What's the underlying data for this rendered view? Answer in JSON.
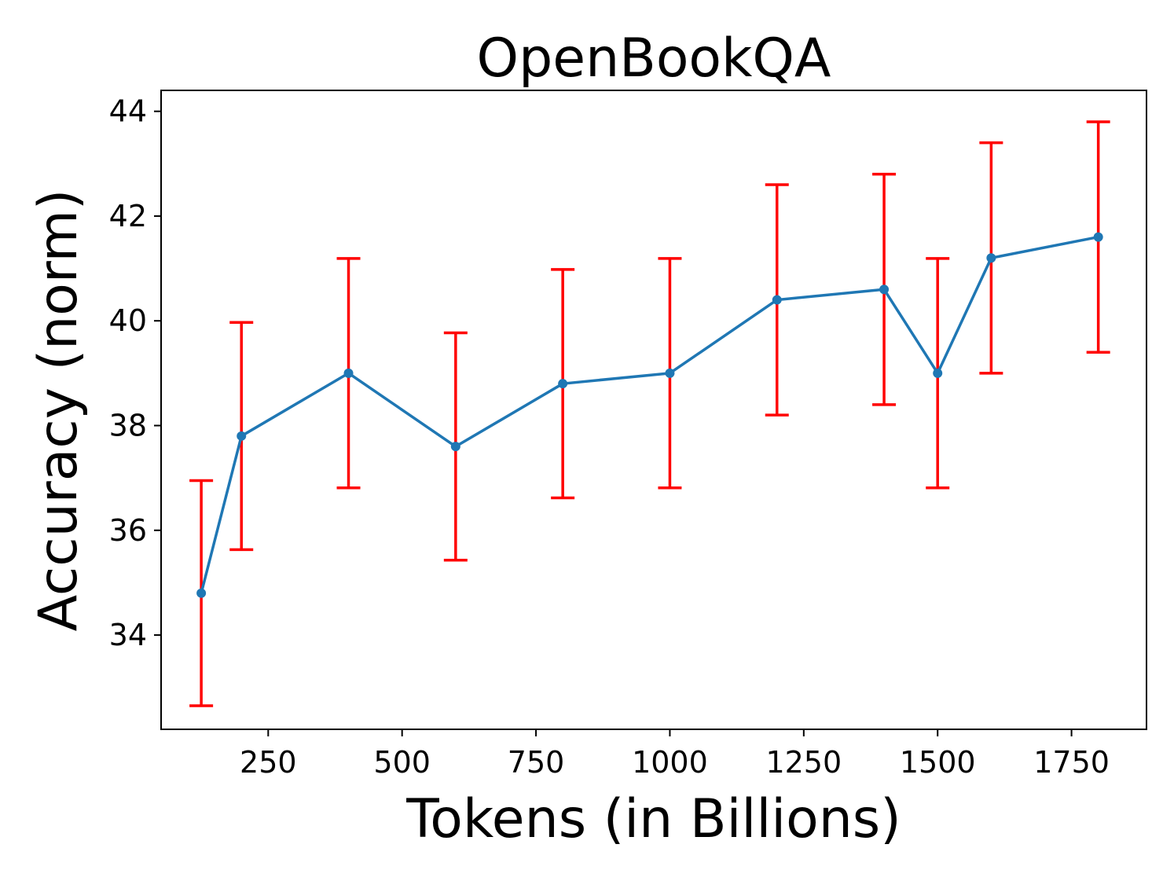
{
  "chart_data": {
    "type": "line",
    "title": "OpenBookQA",
    "xlabel": "Tokens (in Billions)",
    "ylabel": "Accuracy (norm)",
    "xlim": [
      50,
      1890
    ],
    "ylim": [
      32.2,
      44.4
    ],
    "xticks": [
      250,
      500,
      750,
      1000,
      1250,
      1500,
      1750
    ],
    "yticks": [
      34,
      36,
      38,
      40,
      42,
      44
    ],
    "grid": false,
    "series": [
      {
        "x": [
          125,
          200,
          400,
          600,
          800,
          1000,
          1200,
          1400,
          1500,
          1600,
          1800
        ],
        "y": [
          34.8,
          37.8,
          39.0,
          37.6,
          38.8,
          39.0,
          40.4,
          40.6,
          39.0,
          41.2,
          41.6
        ],
        "error": [
          2.15,
          2.17,
          2.19,
          2.17,
          2.18,
          2.19,
          2.2,
          2.2,
          2.19,
          2.2,
          2.2
        ],
        "color": "#1f77b4",
        "error_color": "#ff0000"
      }
    ]
  }
}
